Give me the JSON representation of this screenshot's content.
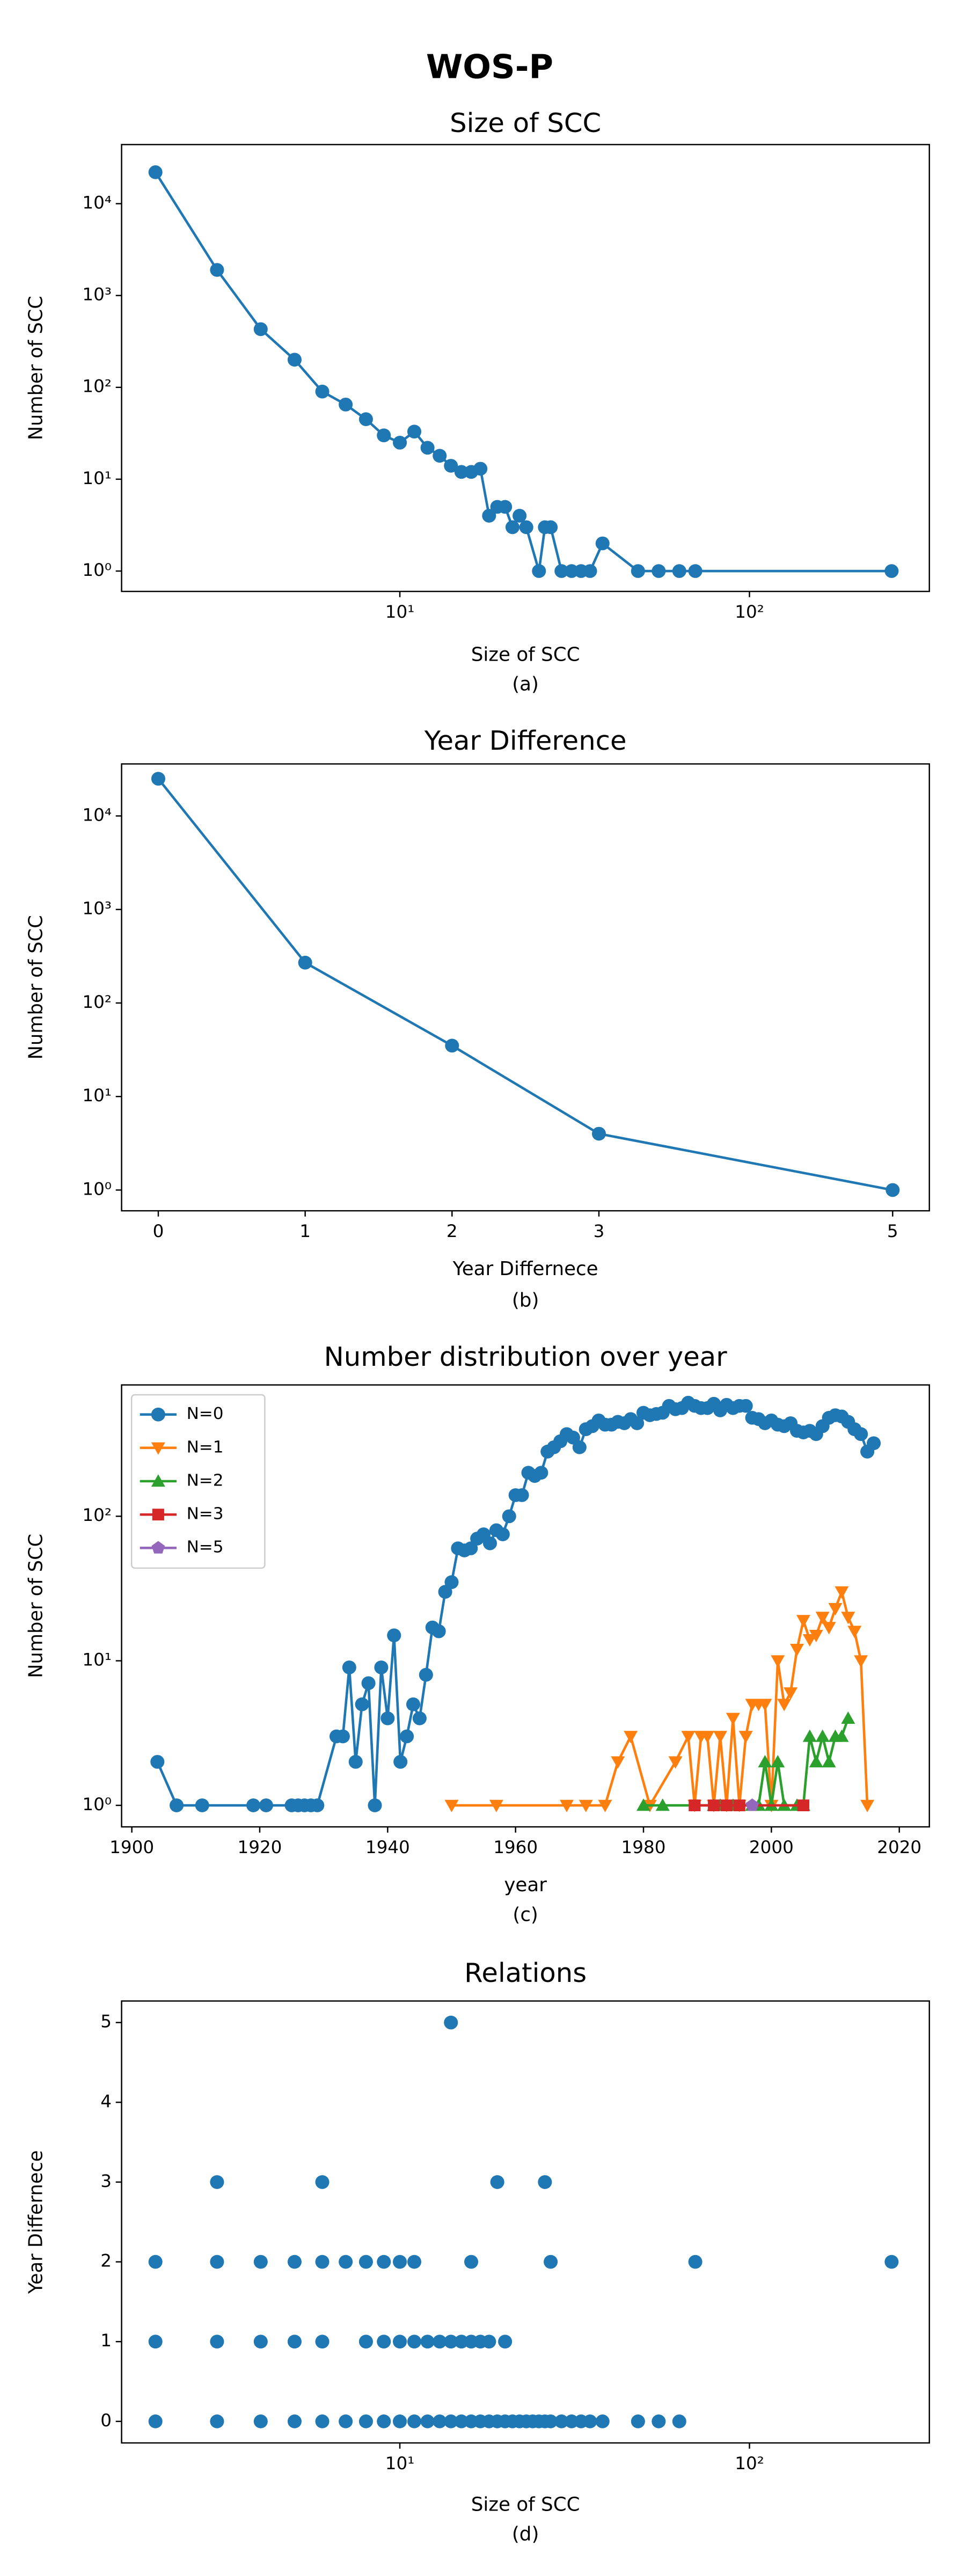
{
  "suptitle": "WOS-P",
  "chart_data": [
    {
      "type": "line",
      "title": "Size of SCC",
      "xlabel": "Size of SCC",
      "ylabel": "Number of SCC",
      "caption": "(a)",
      "xscale": "log",
      "yscale": "log",
      "xlim": [
        1.6,
        327
      ],
      "ylim": [
        0.6,
        44000
      ],
      "xticks": [
        {
          "value": 10,
          "label": "10¹"
        },
        {
          "value": 100,
          "label": "10²"
        }
      ],
      "yticks": [
        {
          "value": 1,
          "label": "10⁰"
        },
        {
          "value": 10,
          "label": "10¹"
        },
        {
          "value": 100,
          "label": "10²"
        },
        {
          "value": 1000,
          "label": "10³"
        },
        {
          "value": 10000,
          "label": "10⁴"
        }
      ],
      "series": [
        {
          "color": "#1f77b4",
          "marker": "circle",
          "x": [
            2,
            3,
            4,
            5,
            6,
            7,
            8,
            9,
            10,
            11,
            12,
            13,
            14,
            15,
            16,
            17,
            18,
            19,
            20,
            21,
            22,
            23,
            25,
            26,
            27,
            29,
            31,
            33,
            35,
            38,
            48,
            55,
            63,
            70,
            255
          ],
          "values": [
            22000,
            1900,
            430,
            200,
            90,
            65,
            45,
            30,
            25,
            33,
            22,
            18,
            14,
            12,
            12,
            13,
            4,
            5,
            5,
            3,
            4,
            3,
            1,
            3,
            3,
            1,
            1,
            1,
            1,
            2,
            1,
            1,
            1,
            1,
            1
          ]
        }
      ]
    },
    {
      "type": "line",
      "title": "Year Difference",
      "xlabel": "Year Differnece",
      "ylabel": "Number of SCC",
      "caption": "(b)",
      "xscale": "linear",
      "yscale": "log",
      "xlim": [
        -0.25,
        5.25
      ],
      "ylim": [
        0.6,
        36000
      ],
      "xticks": [
        0,
        1,
        2,
        3,
        5
      ],
      "yticks": [
        {
          "value": 1,
          "label": "10⁰"
        },
        {
          "value": 10,
          "label": "10¹"
        },
        {
          "value": 100,
          "label": "10²"
        },
        {
          "value": 1000,
          "label": "10³"
        },
        {
          "value": 10000,
          "label": "10⁴"
        }
      ],
      "series": [
        {
          "color": "#1f77b4",
          "marker": "circle",
          "x": [
            0,
            1,
            2,
            3,
            5
          ],
          "values": [
            25000,
            270,
            35,
            4,
            1
          ]
        }
      ]
    },
    {
      "type": "line",
      "title": "Number distribution over year",
      "xlabel": "year",
      "ylabel": "Number of SCC",
      "caption": "(c)",
      "xscale": "linear",
      "yscale": "log",
      "xlim": [
        1898.4,
        2024.7
      ],
      "ylim": [
        0.71,
        810
      ],
      "xticks": [
        1900,
        1920,
        1940,
        1960,
        1980,
        2000,
        2020
      ],
      "yticks": [
        {
          "value": 1,
          "label": "10⁰"
        },
        {
          "value": 10,
          "label": "10¹"
        },
        {
          "value": 100,
          "label": "10²"
        }
      ],
      "legend": "upper left",
      "series": [
        {
          "name": "N=0",
          "color": "#1f77b4",
          "marker": "circle",
          "x": [
            1904,
            1907,
            1911,
            1919,
            1921,
            1925,
            1926,
            1927,
            1928,
            1929,
            1932,
            1933,
            1934,
            1935,
            1936,
            1937,
            1938,
            1939,
            1940,
            1941,
            1942,
            1943,
            1944,
            1945,
            1946,
            1947,
            1948,
            1949,
            1950,
            1951,
            1952,
            1953,
            1954,
            1955,
            1956,
            1957,
            1958,
            1959,
            1960,
            1961,
            1962,
            1963,
            1964,
            1965,
            1966,
            1967,
            1968,
            1969,
            1970,
            1971,
            1972,
            1973,
            1974,
            1975,
            1976,
            1977,
            1978,
            1979,
            1980,
            1981,
            1982,
            1983,
            1984,
            1985,
            1986,
            1987,
            1988,
            1989,
            1990,
            1991,
            1992,
            1993,
            1994,
            1995,
            1996,
            1997,
            1998,
            1999,
            2000,
            2001,
            2002,
            2003,
            2004,
            2005,
            2006,
            2007,
            2008,
            2009,
            2010,
            2011,
            2012,
            2013,
            2014,
            2015,
            2016
          ],
          "values": [
            2,
            1,
            1,
            1,
            1,
            1,
            1,
            1,
            1,
            1,
            3,
            3,
            9,
            2,
            5,
            7,
            1,
            9,
            4,
            15,
            2,
            3,
            5,
            4,
            8,
            17,
            16,
            30,
            35,
            60,
            58,
            60,
            70,
            75,
            65,
            80,
            75,
            100,
            140,
            140,
            200,
            190,
            200,
            280,
            300,
            330,
            370,
            350,
            300,
            400,
            420,
            460,
            430,
            430,
            450,
            440,
            470,
            440,
            520,
            500,
            510,
            520,
            580,
            550,
            560,
            610,
            580,
            560,
            560,
            600,
            540,
            590,
            560,
            580,
            580,
            480,
            470,
            440,
            460,
            430,
            420,
            440,
            390,
            380,
            390,
            370,
            420,
            480,
            500,
            490,
            450,
            400,
            370,
            280,
            320
          ]
        },
        {
          "name": "N=1",
          "color": "#ff7f0e",
          "marker": "triangle-down",
          "x": [
            1950,
            1957,
            1968,
            1971,
            1974,
            1976,
            1978,
            1981,
            1985,
            1987,
            1988,
            1989,
            1990,
            1991,
            1992,
            1993,
            1994,
            1995,
            1996,
            1997,
            1998,
            1999,
            2000,
            2001,
            2002,
            2003,
            2004,
            2005,
            2006,
            2007,
            2008,
            2009,
            2010,
            2011,
            2012,
            2013,
            2014,
            2015
          ],
          "values": [
            1,
            1,
            1,
            1,
            1,
            2,
            3,
            1,
            2,
            3,
            1,
            3,
            3,
            1,
            3,
            1,
            4,
            1,
            3,
            5,
            5,
            5,
            1,
            10,
            5,
            6,
            12,
            19,
            14,
            15,
            20,
            17,
            23,
            30,
            20,
            16,
            10,
            1
          ]
        },
        {
          "name": "N=2",
          "color": "#2ca02c",
          "marker": "triangle-up",
          "x": [
            1980,
            1983,
            1991,
            1992,
            1994,
            1997,
            1998,
            1999,
            2000,
            2001,
            2002,
            2004,
            2005,
            2006,
            2007,
            2008,
            2009,
            2010,
            2011,
            2012
          ],
          "values": [
            1,
            1,
            1,
            1,
            1,
            1,
            1,
            2,
            1,
            2,
            1,
            1,
            1,
            3,
            2,
            3,
            2,
            3,
            3,
            4
          ]
        },
        {
          "name": "N=3",
          "color": "#d62728",
          "marker": "square",
          "x": [
            1988,
            1991,
            1993,
            1995,
            2005
          ],
          "values": [
            1,
            1,
            1,
            1,
            1
          ]
        },
        {
          "name": "N=5",
          "color": "#9467bd",
          "marker": "pentagon",
          "x": [
            1997
          ],
          "values": [
            1
          ]
        }
      ]
    },
    {
      "type": "scatter",
      "title": "Relations",
      "xlabel": "Size of SCC",
      "ylabel": "Year Differnece",
      "caption": "(d)",
      "xscale": "log",
      "yscale": "linear",
      "xlim": [
        1.6,
        327
      ],
      "ylim": [
        -0.27,
        5.27
      ],
      "xticks": [
        {
          "value": 10,
          "label": "10¹"
        },
        {
          "value": 100,
          "label": "10²"
        }
      ],
      "yticks": [
        0,
        1,
        2,
        3,
        4,
        5
      ],
      "series": [
        {
          "color": "#1f77b4",
          "marker": "circle",
          "x": [
            2,
            3,
            4,
            5,
            6,
            7,
            8,
            9,
            10,
            11,
            12,
            13,
            14,
            15,
            16,
            17,
            18,
            19,
            20,
            21,
            22,
            23,
            24,
            25,
            26,
            27,
            29,
            31,
            33,
            35,
            38,
            48,
            55,
            63,
            2,
            3,
            4,
            5,
            6,
            8,
            9,
            10,
            11,
            12,
            13,
            14,
            15,
            16,
            17,
            18,
            20,
            2,
            3,
            4,
            5,
            6,
            7,
            8,
            9,
            10,
            11,
            16,
            27,
            70,
            255,
            3,
            6,
            19,
            26,
            14
          ],
          "values": [
            0,
            0,
            0,
            0,
            0,
            0,
            0,
            0,
            0,
            0,
            0,
            0,
            0,
            0,
            0,
            0,
            0,
            0,
            0,
            0,
            0,
            0,
            0,
            0,
            0,
            0,
            0,
            0,
            0,
            0,
            0,
            0,
            0,
            0,
            1,
            1,
            1,
            1,
            1,
            1,
            1,
            1,
            1,
            1,
            1,
            1,
            1,
            1,
            1,
            1,
            1,
            2,
            2,
            2,
            2,
            2,
            2,
            2,
            2,
            2,
            2,
            2,
            2,
            2,
            2,
            3,
            3,
            3,
            3,
            5
          ]
        }
      ]
    }
  ]
}
